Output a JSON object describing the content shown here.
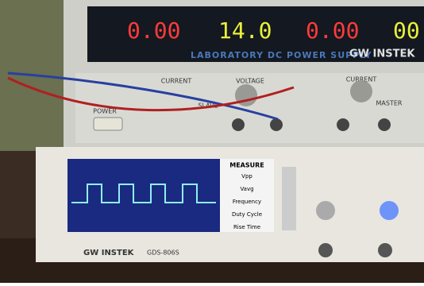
{
  "power_supply": {
    "displays": [
      {
        "text": "0.00",
        "color": "#ff3b3b"
      },
      {
        "text": "14.0",
        "color": "#e8f03a"
      },
      {
        "text": "0.00",
        "color": "#ff3b3b"
      },
      {
        "text": "00",
        "color": "#e8f03a"
      }
    ],
    "label": "LABORATORY DC POWER SUPPLY",
    "brand": "GW INSTEK",
    "panel_labels": [
      "CURRENT",
      "VOLTAGE",
      "CURRENT",
      "MASTER",
      "SLAVE",
      "POWER"
    ]
  },
  "oscilloscope": {
    "brand": "GW INSTEK",
    "model": "GDS-806S",
    "measure_title": "MEASURE",
    "measurements": [
      "Vpp",
      "Vavg",
      "Frequency",
      "Duty Cycle",
      "Rise Time"
    ]
  }
}
